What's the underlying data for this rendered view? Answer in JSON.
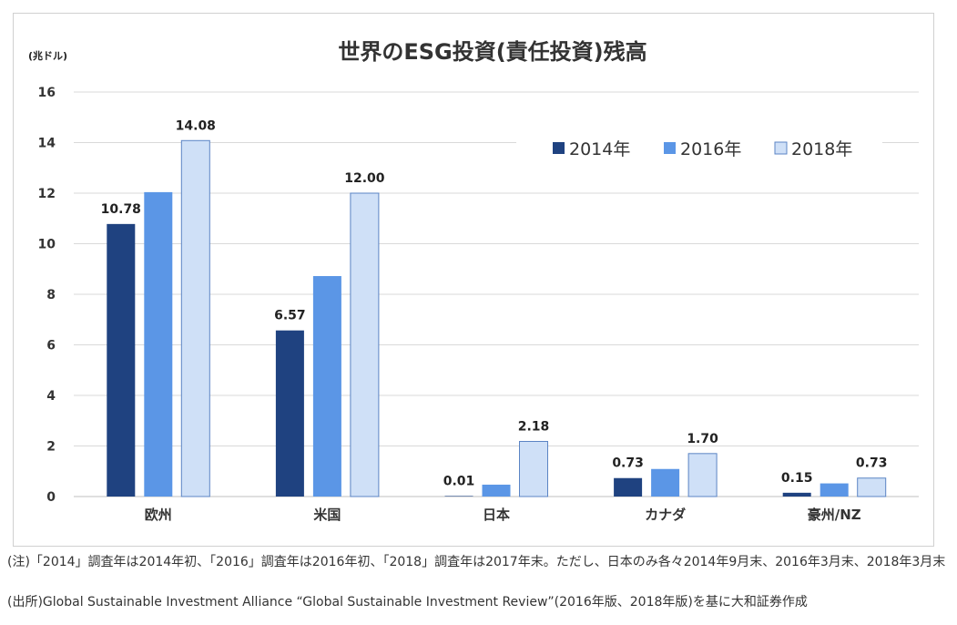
{
  "chart_data": {
    "type": "bar",
    "title": "世界のESG投資(責任投資)残高",
    "unit_label": "(兆ドル)",
    "categories": [
      "欧州",
      "米国",
      "日本",
      "カナダ",
      "豪州/NZ"
    ],
    "ylim": [
      0,
      16
    ],
    "yticks": [
      0,
      2,
      4,
      6,
      8,
      10,
      12,
      14,
      16
    ],
    "grid": true,
    "legend_position": "top-right",
    "series": [
      {
        "name": "2014年",
        "color": "#1f4280",
        "values": [
          10.78,
          6.57,
          0.01,
          0.73,
          0.15
        ],
        "labels": [
          "10.78",
          "6.57",
          "0.01",
          "0.73",
          "0.15"
        ]
      },
      {
        "name": "2016年",
        "color": "#5b96e6",
        "values": [
          12.04,
          8.72,
          0.47,
          1.09,
          0.52
        ],
        "labels": [
          "",
          "",
          "",
          "",
          ""
        ]
      },
      {
        "name": "2018年",
        "color": "#cfe0f7",
        "values": [
          14.08,
          12.0,
          2.18,
          1.7,
          0.73
        ],
        "labels": [
          "14.08",
          "12.00",
          "2.18",
          "1.70",
          "0.73"
        ]
      }
    ]
  },
  "notes": {
    "note1": "(注)「2014」調査年は2014年初、「2016」調査年は2016年初、「2018」調査年は2017年末。ただし、日本のみ各々2014年9月末、2016年3月末、2018年3月末",
    "note2": "(出所)Global Sustainable Investment Alliance “Global Sustainable Investment Review”(2016年版、2018年版)を基に大和証券作成"
  }
}
